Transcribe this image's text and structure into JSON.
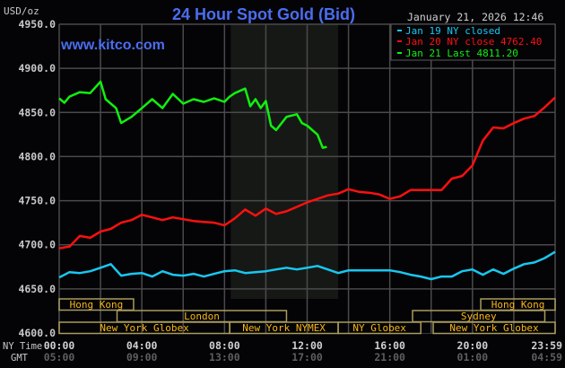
{
  "header": {
    "title": "24 Hour Spot Gold (Bid)",
    "watermark": "www.kitco.com",
    "timestamp": "January 21, 2026 12:46",
    "unit_label": "USD/oz"
  },
  "legend": [
    {
      "label": "Jan 19 NY closed",
      "color": "#18c8f0"
    },
    {
      "label": "Jan 20 NY close 4762.40",
      "color": "#ff1010"
    },
    {
      "label": "Jan 21 Last 4811.20",
      "color": "#10f010"
    }
  ],
  "axis": {
    "row_labels": {
      "ny": "NY Time",
      "gmt": "GMT"
    },
    "ny_ticks": [
      "00:00",
      "04:00",
      "08:00",
      "12:00",
      "16:00",
      "20:00",
      "23:59"
    ],
    "gmt_ticks": [
      "05:00",
      "09:00",
      "13:00",
      "17:00",
      "21:00",
      "01:00",
      "04:59"
    ]
  },
  "sessions": [
    {
      "label": "Hong Kong",
      "row": 0,
      "start": 0,
      "end": 3.6
    },
    {
      "label": "London",
      "row": 1,
      "start": 2.8,
      "end": 11.0
    },
    {
      "label": "New York Globex",
      "row": 2,
      "start": 0,
      "end": 8.25
    },
    {
      "label": "New York NYMEX",
      "row": 2,
      "start": 8.25,
      "end": 13.5
    },
    {
      "label": "NY Globex",
      "row": 2,
      "start": 13.5,
      "end": 17.5
    },
    {
      "label": "Hong Kong",
      "row": 0,
      "start": 20.4,
      "end": 24
    },
    {
      "label": "Sydney",
      "row": 1,
      "start": 17.1,
      "end": 23.5
    },
    {
      "label": "New York Globex",
      "row": 2,
      "start": 18.1,
      "end": 24
    }
  ],
  "chart_data": {
    "type": "line",
    "title": "24 Hour Spot Gold (Bid)",
    "xlabel": "NY Time / GMT",
    "ylabel": "USD/oz",
    "ylim": [
      4600,
      4950
    ],
    "xlim": [
      0,
      24
    ],
    "y_ticks": [
      "4600.0",
      "4650.0",
      "4700.0",
      "4750.0",
      "4800.0",
      "4850.0",
      "4900.0",
      "4950.0"
    ],
    "y_tick_values": [
      4600,
      4650,
      4700,
      4750,
      4800,
      4850,
      4900,
      4950
    ],
    "grid": true,
    "shaded_region_hours": [
      8.3,
      13.5
    ],
    "legend_position": "top-right",
    "series": [
      {
        "name": "Jan 19 NY closed",
        "color": "#18c8f0",
        "x": [
          0,
          0.5,
          1,
          1.5,
          2,
          2.5,
          3,
          3.5,
          4,
          4.5,
          5,
          5.5,
          6,
          6.5,
          7,
          7.5,
          8,
          8.5,
          9,
          9.5,
          10,
          10.5,
          11,
          11.5,
          12,
          12.5,
          13,
          13.5,
          14,
          15,
          16,
          16.5,
          17,
          17.5,
          18,
          18.5,
          19,
          19.5,
          20,
          20.5,
          21,
          21.5,
          22,
          22.5,
          23,
          23.5,
          24
        ],
        "values": [
          4663,
          4669,
          4668,
          4670,
          4674,
          4678,
          4665,
          4667,
          4668,
          4664,
          4670,
          4666,
          4665,
          4667,
          4664,
          4667,
          4670,
          4671,
          4668,
          4669,
          4670,
          4672,
          4674,
          4672,
          4674,
          4676,
          4672,
          4668,
          4671,
          4671,
          4671,
          4669,
          4666,
          4664,
          4661,
          4664,
          4664,
          4670,
          4672,
          4666,
          4672,
          4667,
          4673,
          4678,
          4680,
          4685,
          4692
        ]
      },
      {
        "name": "Jan 20 NY close",
        "color": "#ff1010",
        "x": [
          0,
          0.5,
          1,
          1.5,
          2,
          2.5,
          3,
          3.5,
          4,
          4.5,
          5,
          5.5,
          6,
          6.5,
          7,
          7.5,
          8,
          8.5,
          9,
          9.5,
          10,
          10.5,
          11,
          11.5,
          12,
          12.5,
          13,
          13.5,
          14,
          14.5,
          15,
          15.5,
          16,
          16.5,
          17,
          17.5,
          18,
          18.5,
          19,
          19.5,
          20,
          20.5,
          21,
          21.5,
          22,
          22.5,
          23,
          23.5,
          24
        ],
        "values": [
          4696,
          4698,
          4710,
          4708,
          4715,
          4718,
          4725,
          4728,
          4734,
          4731,
          4728,
          4731,
          4729,
          4727,
          4726,
          4725,
          4722,
          4730,
          4740,
          4733,
          4741,
          4735,
          4738,
          4743,
          4748,
          4752,
          4756,
          4758,
          4763,
          4760,
          4759,
          4757,
          4752,
          4755,
          4762,
          4762,
          4762,
          4762,
          4775,
          4778,
          4790,
          4818,
          4833,
          4832,
          4838,
          4843,
          4846,
          4856,
          4867
        ]
      },
      {
        "name": "Jan 21 Last",
        "color": "#10f010",
        "x": [
          0,
          0.25,
          0.5,
          1,
          1.5,
          2,
          2.25,
          2.5,
          2.75,
          3,
          3.5,
          4,
          4.5,
          5,
          5.5,
          6,
          6.5,
          7,
          7.5,
          8,
          8.25,
          8.5,
          9,
          9.25,
          9.5,
          9.75,
          10,
          10.25,
          10.5,
          11,
          11.5,
          11.75,
          12,
          12.5,
          12.75,
          12.95
        ],
        "values": [
          4866,
          4861,
          4868,
          4873,
          4872,
          4885,
          4865,
          4860,
          4855,
          4838,
          4845,
          4855,
          4865,
          4855,
          4871,
          4860,
          4865,
          4862,
          4866,
          4862,
          4868,
          4872,
          4877,
          4857,
          4865,
          4855,
          4863,
          4835,
          4830,
          4845,
          4848,
          4838,
          4835,
          4825,
          4810,
          4811
        ]
      }
    ]
  }
}
